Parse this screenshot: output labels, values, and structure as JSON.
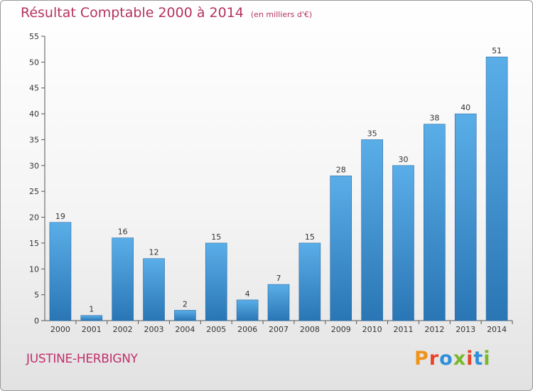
{
  "header": {
    "title": "Résultat Comptable 2000 à 2014",
    "unit": "(en milliers d'€)"
  },
  "footer": {
    "commune": "JUSTINE-HERBIGNY",
    "logo_text": "Proxiti"
  },
  "colors": {
    "title": "#b5325f",
    "bar_light": "#5aaee8",
    "bar_dark": "#2a76b5",
    "logo": [
      "#f0931c",
      "#e8442c",
      "#2f8fd9",
      "#78b82a",
      "#e8442c",
      "#2f8fd9",
      "#78b82a"
    ]
  },
  "chart_data": {
    "type": "bar",
    "title": "Résultat Comptable 2000 à 2014",
    "xlabel": "",
    "ylabel": "",
    "categories": [
      "2000",
      "2001",
      "2002",
      "2003",
      "2004",
      "2005",
      "2006",
      "2007",
      "2008",
      "2009",
      "2010",
      "2011",
      "2012",
      "2013",
      "2014"
    ],
    "values": [
      19,
      1,
      16,
      12,
      2,
      15,
      4,
      7,
      15,
      28,
      35,
      30,
      38,
      40,
      51
    ],
    "ylim": [
      0,
      55
    ],
    "yticks": [
      0,
      5,
      10,
      15,
      20,
      25,
      30,
      35,
      40,
      45,
      50,
      55
    ],
    "grid": false,
    "legend": "none"
  }
}
